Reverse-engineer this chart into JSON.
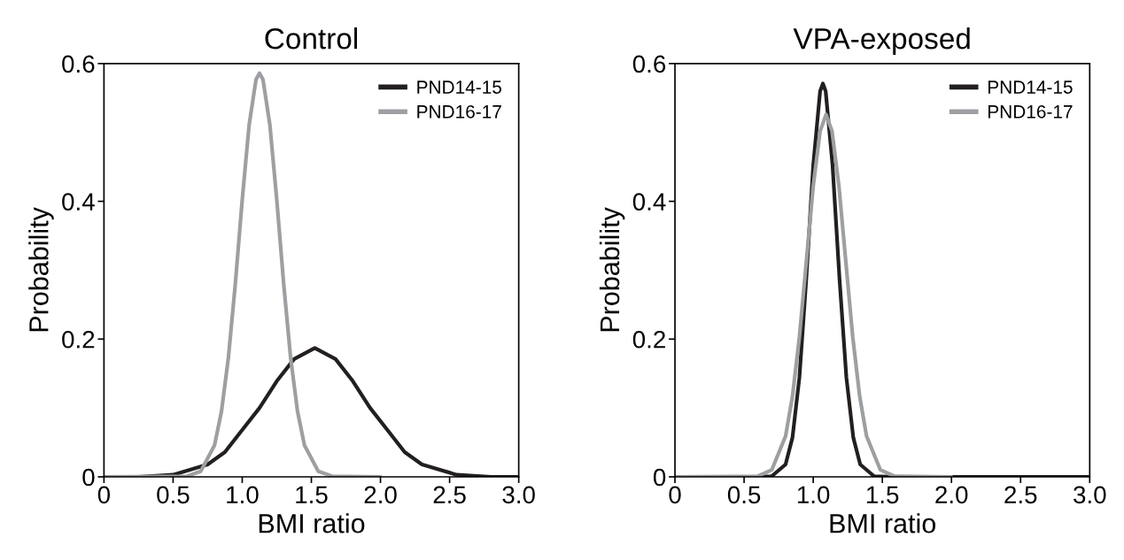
{
  "chart_data": [
    {
      "type": "line",
      "title": "Control",
      "xlabel": "BMI ratio",
      "ylabel": "Probability",
      "xlim": [
        0,
        3.0
      ],
      "ylim": [
        0,
        0.6
      ],
      "xticks": [
        {
          "value": 0,
          "label": "0"
        },
        {
          "value": 0.5,
          "label": "0.5"
        },
        {
          "value": 1.0,
          "label": "1.0"
        },
        {
          "value": 1.5,
          "label": "1.5"
        },
        {
          "value": 2.0,
          "label": "2.0"
        },
        {
          "value": 2.5,
          "label": "2.5"
        },
        {
          "value": 3.0,
          "label": "3.0"
        }
      ],
      "yticks": [
        {
          "value": 0,
          "label": "0"
        },
        {
          "value": 0.2,
          "label": "0.2"
        },
        {
          "value": 0.4,
          "label": "0.4"
        },
        {
          "value": 0.6,
          "label": "0.6"
        }
      ],
      "legend": "top right",
      "grid": false,
      "series": [
        {
          "name": "PND14-15",
          "color": "#231f20",
          "x": [
            0,
            0.25,
            0.5,
            0.75,
            0.875,
            1.0,
            1.125,
            1.25,
            1.375,
            1.525,
            1.675,
            1.8,
            1.925,
            2.05,
            2.175,
            2.3,
            2.55,
            2.8,
            3.0
          ],
          "values": [
            0,
            0,
            0.003,
            0.018,
            0.036,
            0.068,
            0.1,
            0.139,
            0.171,
            0.187,
            0.171,
            0.139,
            0.1,
            0.068,
            0.036,
            0.018,
            0.003,
            0,
            0
          ]
        },
        {
          "name": "PND16-17",
          "color": "#9d9fa2",
          "x": [
            0,
            0.6,
            0.7,
            0.8,
            0.85,
            0.9,
            0.95,
            1.0,
            1.05,
            1.1,
            1.125,
            1.15,
            1.2,
            1.25,
            1.3,
            1.35,
            1.4,
            1.45,
            1.55,
            1.65,
            2.0
          ],
          "values": [
            0,
            0.001,
            0.008,
            0.046,
            0.095,
            0.173,
            0.28,
            0.402,
            0.511,
            0.577,
            0.586,
            0.577,
            0.511,
            0.402,
            0.28,
            0.173,
            0.095,
            0.046,
            0.008,
            0.001,
            0
          ]
        }
      ]
    },
    {
      "type": "line",
      "title": "VPA-exposed",
      "xlabel": "BMI ratio",
      "ylabel": "Probability",
      "xlim": [
        0,
        3.0
      ],
      "ylim": [
        0,
        0.6
      ],
      "xticks": [
        {
          "value": 0,
          "label": "0"
        },
        {
          "value": 0.5,
          "label": "0.5"
        },
        {
          "value": 1.0,
          "label": "1.0"
        },
        {
          "value": 1.5,
          "label": "1.5"
        },
        {
          "value": 2.0,
          "label": "2.0"
        },
        {
          "value": 2.5,
          "label": "2.5"
        },
        {
          "value": 3.0,
          "label": "3.0"
        }
      ],
      "yticks": [
        {
          "value": 0,
          "label": "0"
        },
        {
          "value": 0.2,
          "label": "0.2"
        },
        {
          "value": 0.4,
          "label": "0.4"
        },
        {
          "value": 0.6,
          "label": "0.6"
        }
      ],
      "legend": "top right",
      "grid": false,
      "series": [
        {
          "name": "PND14-15",
          "color": "#231f20",
          "x": [
            0,
            0.6,
            0.7,
            0.8,
            0.85,
            0.9,
            0.95,
            1.0,
            1.05,
            1.07,
            1.09,
            1.14,
            1.19,
            1.24,
            1.29,
            1.34,
            1.44,
            1.6,
            3.0
          ],
          "values": [
            0,
            0,
            0.001,
            0.018,
            0.057,
            0.144,
            0.288,
            0.452,
            0.56,
            0.571,
            0.56,
            0.452,
            0.288,
            0.144,
            0.057,
            0.018,
            0.001,
            0,
            0
          ]
        },
        {
          "name": "PND16-17",
          "color": "#9d9fa2",
          "x": [
            0,
            0.6,
            0.7,
            0.8,
            0.85,
            0.9,
            0.95,
            1.0,
            1.05,
            1.093,
            1.136,
            1.186,
            1.236,
            1.286,
            1.336,
            1.386,
            1.486,
            1.586,
            2.0
          ],
          "values": [
            0,
            0.001,
            0.01,
            0.059,
            0.117,
            0.203,
            0.312,
            0.422,
            0.502,
            0.526,
            0.502,
            0.422,
            0.312,
            0.203,
            0.117,
            0.059,
            0.01,
            0.001,
            0
          ]
        }
      ]
    }
  ]
}
